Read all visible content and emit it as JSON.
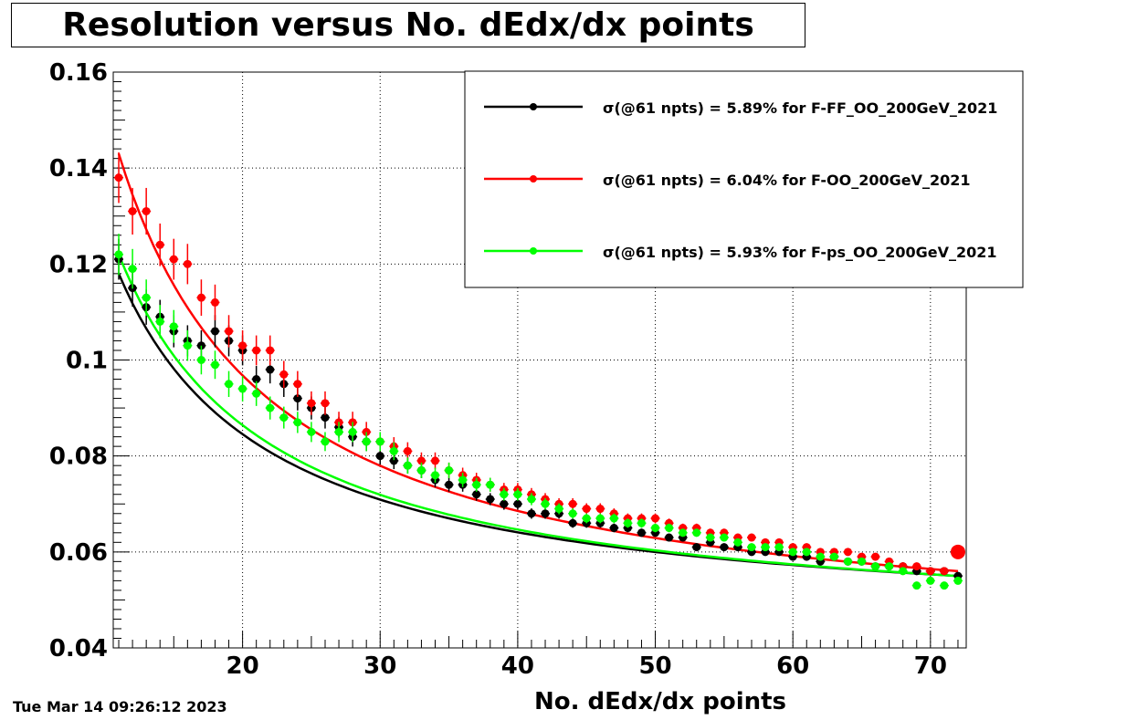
{
  "chart_data": {
    "type": "scatter",
    "title": "Resolution versus No. dEdx/dx points",
    "xlabel": "No. dEdx/dx points",
    "ylabel": "",
    "timestamp": "Tue Mar 14 09:26:12 2023",
    "xlim": [
      10.6,
      72.6
    ],
    "ylim": [
      0.04,
      0.16
    ],
    "x_ticks": [
      20,
      30,
      40,
      50,
      60,
      70
    ],
    "y_ticks": [
      0.04,
      0.06,
      0.08,
      0.1,
      0.12,
      0.14,
      0.16
    ],
    "y_tick_labels": [
      "0.04",
      "0.06",
      "0.08",
      "0.1",
      "0.12",
      "0.14",
      "0.16"
    ],
    "grid": true,
    "legend_position": "top-right",
    "series": [
      {
        "name": "σ(@61 npts) = 5.89% for F-FF_OO_200GeV_2021",
        "color": "#000000",
        "x": [
          11,
          12,
          13,
          14,
          15,
          16,
          17,
          18,
          19,
          20,
          21,
          22,
          23,
          24,
          25,
          26,
          27,
          28,
          29,
          30,
          31,
          32,
          33,
          34,
          35,
          36,
          37,
          38,
          39,
          40,
          41,
          42,
          43,
          44,
          45,
          46,
          47,
          48,
          49,
          50,
          51,
          52,
          53,
          54,
          55,
          56,
          57,
          58,
          59,
          60,
          61,
          62,
          63,
          64,
          65,
          66,
          67,
          68,
          69,
          70,
          71,
          72
        ],
        "y": [
          0.121,
          0.115,
          0.111,
          0.109,
          0.106,
          0.104,
          0.103,
          0.106,
          0.104,
          0.102,
          0.096,
          0.098,
          0.095,
          0.092,
          0.09,
          0.088,
          0.086,
          0.084,
          0.083,
          0.08,
          0.079,
          0.078,
          0.077,
          0.075,
          0.074,
          0.074,
          0.072,
          0.071,
          0.07,
          0.07,
          0.068,
          0.068,
          0.068,
          0.066,
          0.066,
          0.066,
          0.065,
          0.065,
          0.064,
          0.064,
          0.063,
          0.063,
          0.061,
          0.062,
          0.061,
          0.061,
          0.06,
          0.06,
          0.06,
          0.059,
          0.059,
          0.058,
          0.059,
          0.058,
          0.058,
          0.057,
          0.057,
          0.057,
          0.056,
          0.056,
          0.056,
          0.055
        ],
        "fit_x": [
          11,
          72
        ],
        "fit_y_endpoints": [
          0.118,
          0.055
        ]
      },
      {
        "name": "σ(@61 npts) = 6.04% for F-OO_200GeV_2021",
        "color": "#ff0000",
        "x": [
          11,
          12,
          13,
          14,
          15,
          16,
          17,
          18,
          19,
          20,
          21,
          22,
          23,
          24,
          25,
          26,
          27,
          28,
          29,
          30,
          31,
          32,
          33,
          34,
          35,
          36,
          37,
          38,
          39,
          40,
          41,
          42,
          43,
          44,
          45,
          46,
          47,
          48,
          49,
          50,
          51,
          52,
          53,
          54,
          55,
          56,
          57,
          58,
          59,
          60,
          61,
          62,
          63,
          64,
          65,
          66,
          67,
          68,
          69,
          70,
          71,
          72
        ],
        "y": [
          0.138,
          0.131,
          0.131,
          0.124,
          0.121,
          0.12,
          0.113,
          0.112,
          0.106,
          0.103,
          0.102,
          0.102,
          0.097,
          0.095,
          0.091,
          0.091,
          0.087,
          0.087,
          0.085,
          0.083,
          0.082,
          0.081,
          0.079,
          0.079,
          0.077,
          0.076,
          0.075,
          0.074,
          0.073,
          0.073,
          0.072,
          0.071,
          0.07,
          0.07,
          0.069,
          0.069,
          0.068,
          0.067,
          0.067,
          0.067,
          0.066,
          0.065,
          0.065,
          0.064,
          0.064,
          0.063,
          0.063,
          0.062,
          0.062,
          0.061,
          0.061,
          0.06,
          0.06,
          0.06,
          0.059,
          0.059,
          0.058,
          0.057,
          0.057,
          0.056,
          0.056,
          0.06
        ],
        "fit_x": [
          11,
          72
        ],
        "fit_y_endpoints": [
          0.143,
          0.056
        ]
      },
      {
        "name": "σ(@61 npts) = 5.93% for F-ps_OO_200GeV_2021",
        "color": "#00ff00",
        "x": [
          11,
          12,
          13,
          14,
          15,
          16,
          17,
          18,
          19,
          20,
          21,
          22,
          23,
          24,
          25,
          26,
          27,
          28,
          29,
          30,
          31,
          32,
          33,
          34,
          35,
          36,
          37,
          38,
          39,
          40,
          41,
          42,
          43,
          44,
          45,
          46,
          47,
          48,
          49,
          50,
          51,
          52,
          53,
          54,
          55,
          56,
          57,
          58,
          59,
          60,
          61,
          62,
          63,
          64,
          65,
          66,
          67,
          68,
          69,
          70,
          71,
          72
        ],
        "y": [
          0.122,
          0.119,
          0.113,
          0.108,
          0.107,
          0.103,
          0.1,
          0.099,
          0.095,
          0.094,
          0.093,
          0.09,
          0.088,
          0.087,
          0.085,
          0.083,
          0.085,
          0.085,
          0.083,
          0.083,
          0.081,
          0.078,
          0.077,
          0.076,
          0.077,
          0.075,
          0.074,
          0.074,
          0.072,
          0.072,
          0.071,
          0.07,
          0.069,
          0.068,
          0.067,
          0.067,
          0.067,
          0.066,
          0.066,
          0.065,
          0.065,
          0.064,
          0.064,
          0.063,
          0.063,
          0.062,
          0.061,
          0.061,
          0.061,
          0.06,
          0.06,
          0.059,
          0.059,
          0.058,
          0.058,
          0.057,
          0.057,
          0.056,
          0.053,
          0.054,
          0.053,
          0.054
        ],
        "fit_x": [
          11,
          72
        ],
        "fit_y_endpoints": [
          0.122,
          0.055
        ]
      }
    ]
  }
}
